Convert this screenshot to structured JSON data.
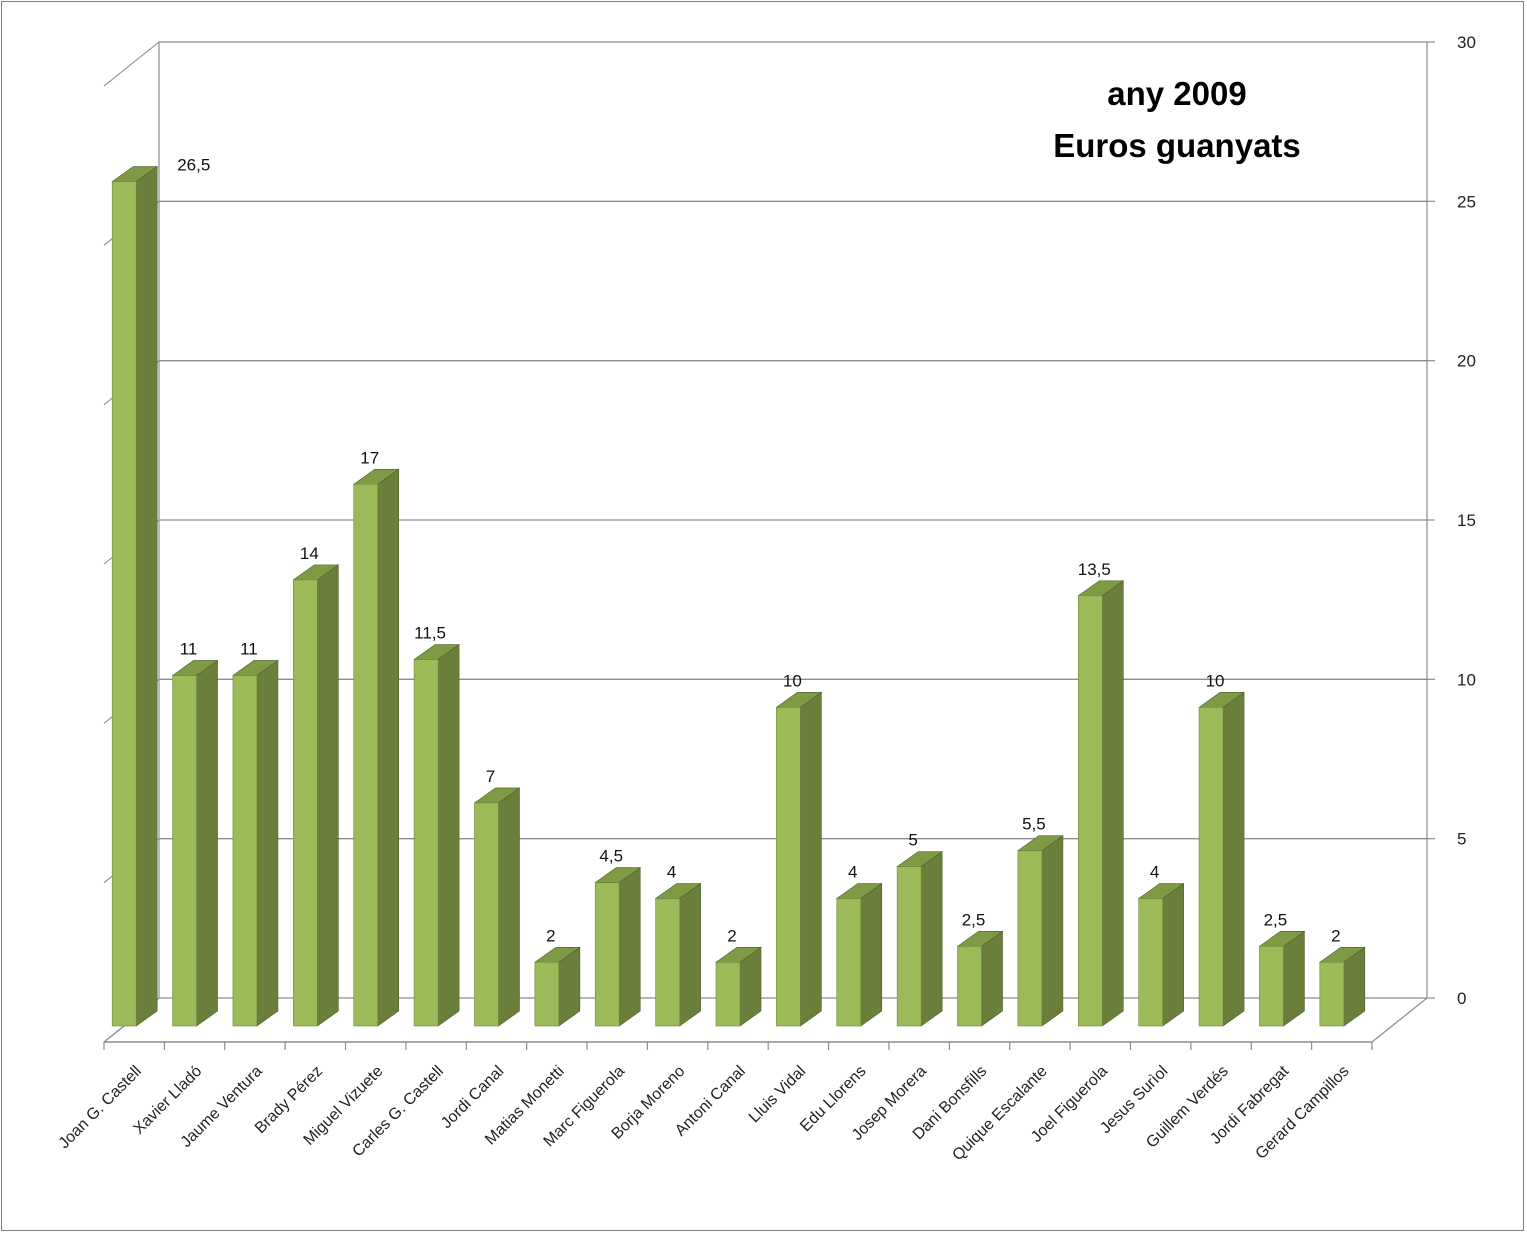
{
  "chart_data": {
    "type": "bar",
    "title_lines": [
      "any 2009",
      "Euros guanyats"
    ],
    "categories": [
      "Joan G. Castell",
      "Xavier Lladó",
      "Jaume Ventura",
      "Brady Pérez",
      "Miguel Vizuete",
      "Carles G. Castell",
      "Jordi Canal",
      "Matias Monetti",
      "Marc Figuerola",
      "Borja Moreno",
      "Antoni Canal",
      "Lluis Vidal",
      "Edu Llorens",
      "Josep Morera",
      "Dani Bonsfills",
      "Quique Escalante",
      "Joel Figuerola",
      "Jesus Surìol",
      "Guillem Verdés",
      "Jordi Fabregat",
      "Gerard Campillos"
    ],
    "values": [
      26.5,
      11,
      11,
      14,
      17,
      11.5,
      7,
      2,
      4.5,
      4,
      2,
      10,
      4,
      5,
      2.5,
      5.5,
      13.5,
      4,
      10,
      2.5,
      2
    ],
    "value_labels": [
      "26,5",
      "11",
      "11",
      "14",
      "17",
      "11,5",
      "7",
      "2",
      "4,5",
      "4",
      "2",
      "10",
      "4",
      "5",
      "2,5",
      "5,5",
      "13,5",
      "4",
      "10",
      "2,5",
      "2"
    ],
    "ylim": [
      0,
      30
    ],
    "yticks": [
      "0",
      "5",
      "10",
      "15",
      "20",
      "25",
      "30"
    ],
    "ytick_values": [
      0,
      5,
      10,
      15,
      20,
      25,
      30
    ],
    "y_axis_side": "right",
    "grid": true,
    "xlabel": "",
    "ylabel": "",
    "colors": {
      "bar_front": "#9bbb59",
      "bar_side": "#6a7f3b",
      "bar_top": "#7f9a45",
      "grid": "#8c8c8c",
      "axis": "#8c8c8c"
    }
  }
}
